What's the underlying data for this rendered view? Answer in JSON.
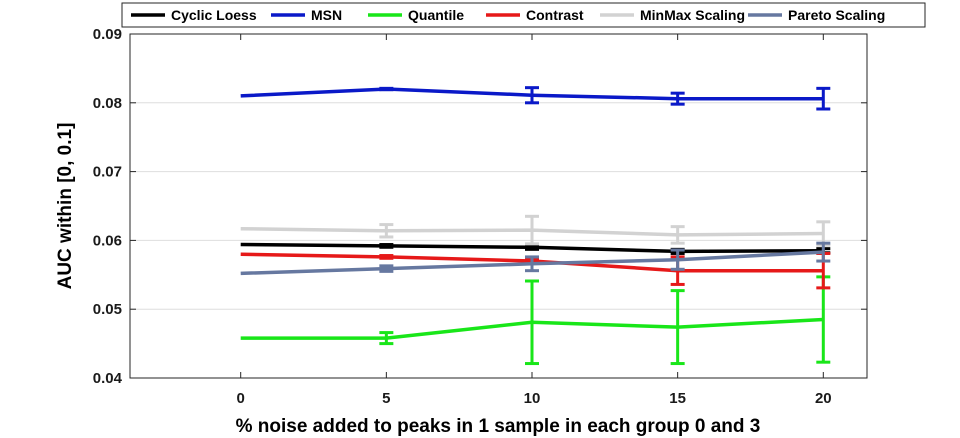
{
  "chart_data": {
    "type": "line",
    "title": "",
    "xlabel": "% noise added to peaks in 1 sample in each group 0 and 3",
    "ylabel": "AUC within [0, 0.1]",
    "x": [
      0,
      5,
      10,
      15,
      20
    ],
    "xlim": [
      -3.8,
      21.5
    ],
    "ylim": [
      0.04,
      0.09
    ],
    "xticks": [
      "0",
      "5",
      "10",
      "15",
      "20"
    ],
    "yticks": [
      "0.04",
      "0.05",
      "0.06",
      "0.07",
      "0.08",
      "0.09"
    ],
    "grid": "horizontal",
    "legend_position": "top",
    "series": [
      {
        "name": "Cyclic Loess",
        "color": "#000000",
        "values": [
          0.0594,
          0.0592,
          0.059,
          0.0584,
          0.0585
        ],
        "errors": [
          0,
          0.0002,
          0.0003,
          0.0003,
          0.0003
        ]
      },
      {
        "name": "MSN",
        "color": "#0a19c8",
        "values": [
          0.081,
          0.082,
          0.0811,
          0.0806,
          0.0806
        ],
        "errors": [
          0,
          0.0001,
          0.0011,
          0.0008,
          0.0015
        ]
      },
      {
        "name": "Quantile",
        "color": "#19e619",
        "values": [
          0.0458,
          0.0458,
          0.0481,
          0.0474,
          0.0485
        ],
        "errors": [
          0,
          0.0008,
          0.006,
          0.0053,
          0.0062
        ]
      },
      {
        "name": "Contrast",
        "color": "#e61919",
        "values": [
          0.058,
          0.0576,
          0.057,
          0.0556,
          0.0556
        ],
        "errors": [
          0,
          0.0002,
          0.0003,
          0.002,
          0.0025
        ]
      },
      {
        "name": "MinMax Scaling",
        "color": "#d2d2d2",
        "values": [
          0.0617,
          0.0614,
          0.0615,
          0.0608,
          0.061
        ],
        "errors": [
          0,
          0.0009,
          0.002,
          0.0012,
          0.0017
        ]
      },
      {
        "name": "Pareto Scaling",
        "color": "#6678a0",
        "values": [
          0.0552,
          0.0559,
          0.0566,
          0.0572,
          0.0583
        ],
        "errors": [
          0,
          0.0004,
          0.001,
          0.0014,
          0.0013
        ]
      }
    ]
  }
}
